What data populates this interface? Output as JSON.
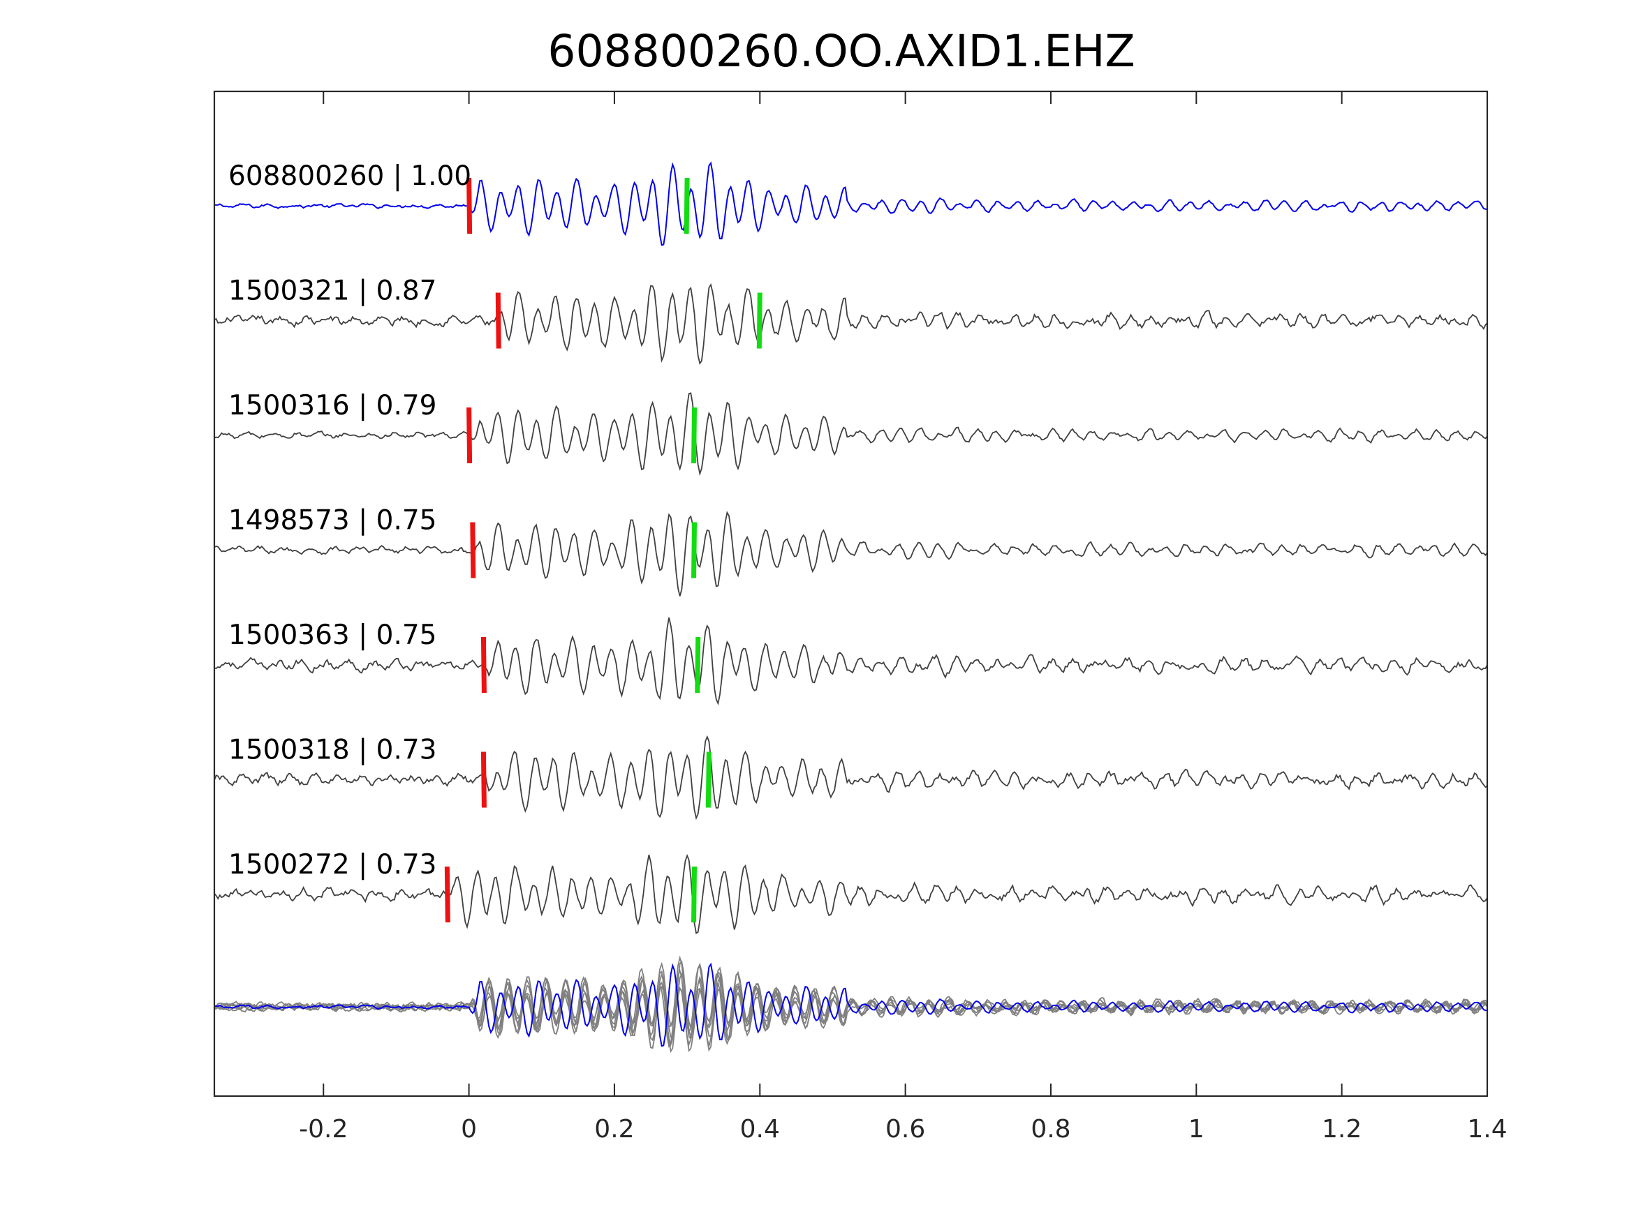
{
  "chart_data": {
    "type": "line",
    "title": "608800260.OO.AXID1.EHZ",
    "xlabel": "",
    "ylabel": "",
    "xlim": [
      -0.35,
      1.4
    ],
    "xticks": [
      -0.2,
      0,
      0.2,
      0.4,
      0.6,
      0.8,
      1,
      1.2,
      1.4
    ],
    "xtick_labels": [
      "-0.2",
      "0",
      "0.2",
      "0.4",
      "0.6",
      "0.8",
      "1",
      "1.2",
      "1.4"
    ],
    "grid": false,
    "colors": {
      "master": "#0000ee",
      "trace": "#404040",
      "stack": "#808080",
      "p_pick": "#ee1111",
      "s_pick": "#11dd11"
    },
    "traces": [
      {
        "label": "608800260 | 1.00",
        "id": "608800260",
        "cc": 1.0,
        "p_pick": 0.0,
        "s_pick": 0.3,
        "color": "master"
      },
      {
        "label": "1500321 | 0.87",
        "id": "1500321",
        "cc": 0.87,
        "p_pick": 0.04,
        "s_pick": 0.4,
        "color": "trace"
      },
      {
        "label": "1500316 | 0.79",
        "id": "1500316",
        "cc": 0.79,
        "p_pick": 0.0,
        "s_pick": 0.31,
        "color": "trace"
      },
      {
        "label": "1498573 | 0.75",
        "id": "1498573",
        "cc": 0.75,
        "p_pick": 0.005,
        "s_pick": 0.31,
        "color": "trace"
      },
      {
        "label": "1500363 | 0.75",
        "id": "1500363",
        "cc": 0.75,
        "p_pick": 0.02,
        "s_pick": 0.315,
        "color": "trace"
      },
      {
        "label": "1500318 | 0.73",
        "id": "1500318",
        "cc": 0.73,
        "p_pick": 0.02,
        "s_pick": 0.33,
        "color": "trace"
      },
      {
        "label": "1500272 | 0.73",
        "id": "1500272",
        "cc": 0.73,
        "p_pick": -0.03,
        "s_pick": 0.31,
        "color": "trace"
      }
    ]
  }
}
